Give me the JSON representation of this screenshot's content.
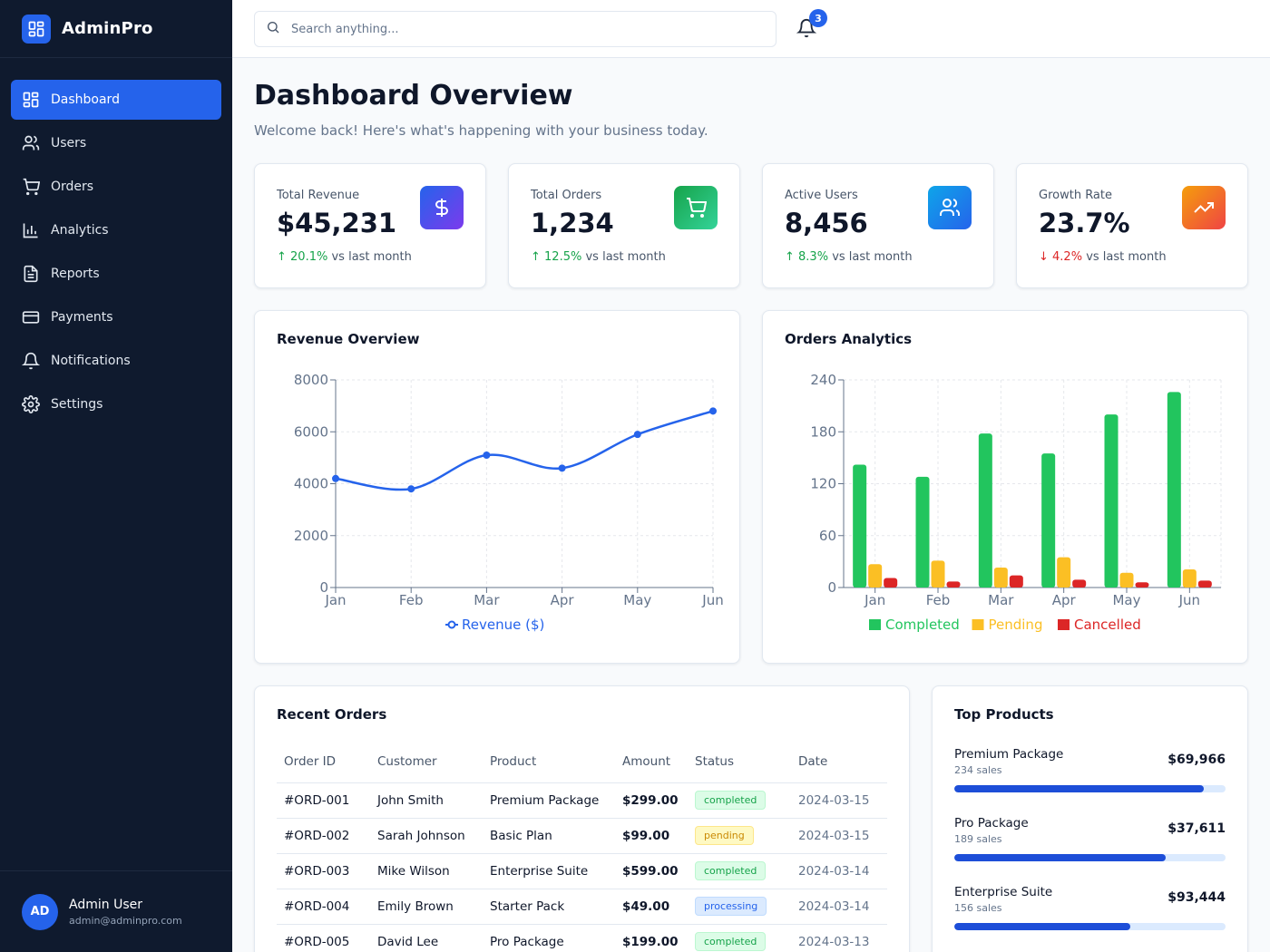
{
  "app": {
    "name": "AdminPro"
  },
  "sidebar": {
    "items": [
      {
        "label": "Dashboard",
        "icon": "dashboard-icon",
        "active": true
      },
      {
        "label": "Users",
        "icon": "users-icon"
      },
      {
        "label": "Orders",
        "icon": "cart-icon"
      },
      {
        "label": "Analytics",
        "icon": "bar-chart-icon"
      },
      {
        "label": "Reports",
        "icon": "document-icon"
      },
      {
        "label": "Payments",
        "icon": "credit-card-icon"
      },
      {
        "label": "Notifications",
        "icon": "bell-icon"
      },
      {
        "label": "Settings",
        "icon": "gear-icon"
      }
    ],
    "user": {
      "initials": "AD",
      "name": "Admin User",
      "email": "admin@adminpro.com"
    }
  },
  "topbar": {
    "search_placeholder": "Search anything...",
    "notification_count": "3"
  },
  "page": {
    "title": "Dashboard Overview",
    "subtitle": "Welcome back! Here's what's happening with your business today."
  },
  "stats": [
    {
      "label": "Total Revenue",
      "value": "$45,231",
      "change": "20.1%",
      "direction": "up",
      "suffix": "vs last month",
      "icon": "dollar-icon",
      "color": "#6d28d9"
    },
    {
      "label": "Total Orders",
      "value": "1,234",
      "change": "12.5%",
      "direction": "up",
      "suffix": "vs last month",
      "icon": "cart-icon",
      "color": "#22c55e"
    },
    {
      "label": "Active Users",
      "value": "8,456",
      "change": "8.3%",
      "direction": "up",
      "suffix": "vs last month",
      "icon": "users-icon",
      "color": "#0ea5e9"
    },
    {
      "label": "Growth Rate",
      "value": "23.7%",
      "change": "4.2%",
      "direction": "down",
      "suffix": "vs last month",
      "icon": "trending-up-icon",
      "color": "#f97316"
    }
  ],
  "revenue_panel": {
    "title": "Revenue Overview"
  },
  "orders_panel": {
    "title": "Orders Analytics"
  },
  "chart_data": [
    {
      "type": "line",
      "title": "Revenue Overview",
      "categories": [
        "Jan",
        "Feb",
        "Mar",
        "Apr",
        "May",
        "Jun"
      ],
      "series": [
        {
          "name": "Revenue ($)",
          "values": [
            4200,
            3800,
            5100,
            4600,
            5900,
            6800
          ],
          "color": "#2563eb"
        }
      ],
      "ylim": [
        0,
        8000
      ],
      "yticks": [
        0,
        2000,
        4000,
        6000,
        8000
      ],
      "grid": true,
      "legend": "bottom"
    },
    {
      "type": "bar",
      "title": "Orders Analytics",
      "categories": [
        "Jan",
        "Feb",
        "Mar",
        "Apr",
        "May",
        "Jun"
      ],
      "series": [
        {
          "name": "Completed",
          "values": [
            142,
            128,
            178,
            155,
            200,
            226
          ],
          "color": "#22c55e"
        },
        {
          "name": "Pending",
          "values": [
            27,
            31,
            23,
            35,
            17,
            21
          ],
          "color": "#fbbf24"
        },
        {
          "name": "Cancelled",
          "values": [
            11,
            7,
            14,
            9,
            6,
            8
          ],
          "color": "#dc2626"
        }
      ],
      "ylim": [
        0,
        240
      ],
      "yticks": [
        0,
        60,
        120,
        180,
        240
      ],
      "grid": true,
      "legend": "bottom"
    }
  ],
  "recent_orders": {
    "title": "Recent Orders",
    "columns": [
      "Order ID",
      "Customer",
      "Product",
      "Amount",
      "Status",
      "Date"
    ],
    "rows": [
      {
        "id": "#ORD-001",
        "customer": "John Smith",
        "product": "Premium Package",
        "amount": "$299.00",
        "status": "completed",
        "date": "2024-03-15"
      },
      {
        "id": "#ORD-002",
        "customer": "Sarah Johnson",
        "product": "Basic Plan",
        "amount": "$99.00",
        "status": "pending",
        "date": "2024-03-15"
      },
      {
        "id": "#ORD-003",
        "customer": "Mike Wilson",
        "product": "Enterprise Suite",
        "amount": "$599.00",
        "status": "completed",
        "date": "2024-03-14"
      },
      {
        "id": "#ORD-004",
        "customer": "Emily Brown",
        "product": "Starter Pack",
        "amount": "$49.00",
        "status": "processing",
        "date": "2024-03-14"
      },
      {
        "id": "#ORD-005",
        "customer": "David Lee",
        "product": "Pro Package",
        "amount": "$199.00",
        "status": "completed",
        "date": "2024-03-13"
      }
    ]
  },
  "top_products": {
    "title": "Top Products",
    "items": [
      {
        "name": "Premium Package",
        "sales": "234 sales",
        "revenue": "$69,966",
        "progress": 0.92
      },
      {
        "name": "Pro Package",
        "sales": "189 sales",
        "revenue": "$37,611",
        "progress": 0.78
      },
      {
        "name": "Enterprise Suite",
        "sales": "156 sales",
        "revenue": "$93,444",
        "progress": 0.65
      }
    ]
  }
}
